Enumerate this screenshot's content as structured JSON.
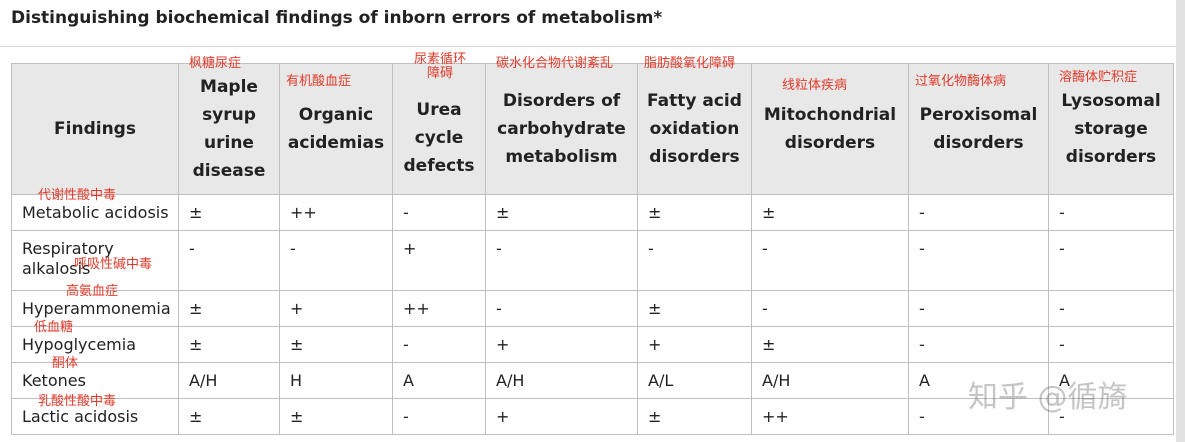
{
  "page": {
    "title": "Distinguishing biochemical findings of inborn errors of metabolism*"
  },
  "table": {
    "columns": [
      {
        "label": "Findings",
        "note": ""
      },
      {
        "label": "Maple syrup urine disease",
        "note": "枫糖尿症"
      },
      {
        "label": "Organic acidemias",
        "note": "有机酸血症"
      },
      {
        "label": "Urea cycle defects",
        "note": "尿素循环障碍"
      },
      {
        "label": "Disorders of carbohydrate metabolism",
        "note": "碳水化合物代谢紊乱"
      },
      {
        "label": "Fatty acid oxidation disorders",
        "note": "脂肪酸氧化障碍"
      },
      {
        "label": "Mitochondrial disorders",
        "note": "线粒体疾病"
      },
      {
        "label": "Peroxisomal disorders",
        "note": "过氧化物酶体病"
      },
      {
        "label": "Lysosomal storage disorders",
        "note": "溶酶体贮积症"
      }
    ],
    "rows": [
      {
        "finding": "Metabolic acidosis",
        "note": "代谢性酸中毒",
        "values": [
          "±",
          "++",
          "-",
          "±",
          "±",
          "±",
          "-",
          "-"
        ]
      },
      {
        "finding": "Respiratory alkalosis",
        "note": "呼吸性碱中毒",
        "values": [
          "-",
          "-",
          "+",
          "-",
          "-",
          "-",
          "-",
          "-"
        ]
      },
      {
        "finding": "Hyperammonemia",
        "note": "高氨血症",
        "values": [
          "±",
          "+",
          "++",
          "-",
          "±",
          "-",
          "-",
          "-"
        ]
      },
      {
        "finding": "Hypoglycemia",
        "note": "低血糖",
        "values": [
          "±",
          "±",
          "-",
          "+",
          "+",
          "±",
          "-",
          "-"
        ]
      },
      {
        "finding": "Ketones",
        "note": "酮体",
        "values": [
          "A/H",
          "H",
          "A",
          "A/H",
          "A/L",
          "A/H",
          "A",
          "A"
        ]
      },
      {
        "finding": "Lactic acidosis",
        "note": "乳酸性酸中毒",
        "values": [
          "±",
          "±",
          "-",
          "+",
          "±",
          "++",
          "-",
          "-"
        ]
      }
    ]
  },
  "watermark": "知乎 @循旖"
}
